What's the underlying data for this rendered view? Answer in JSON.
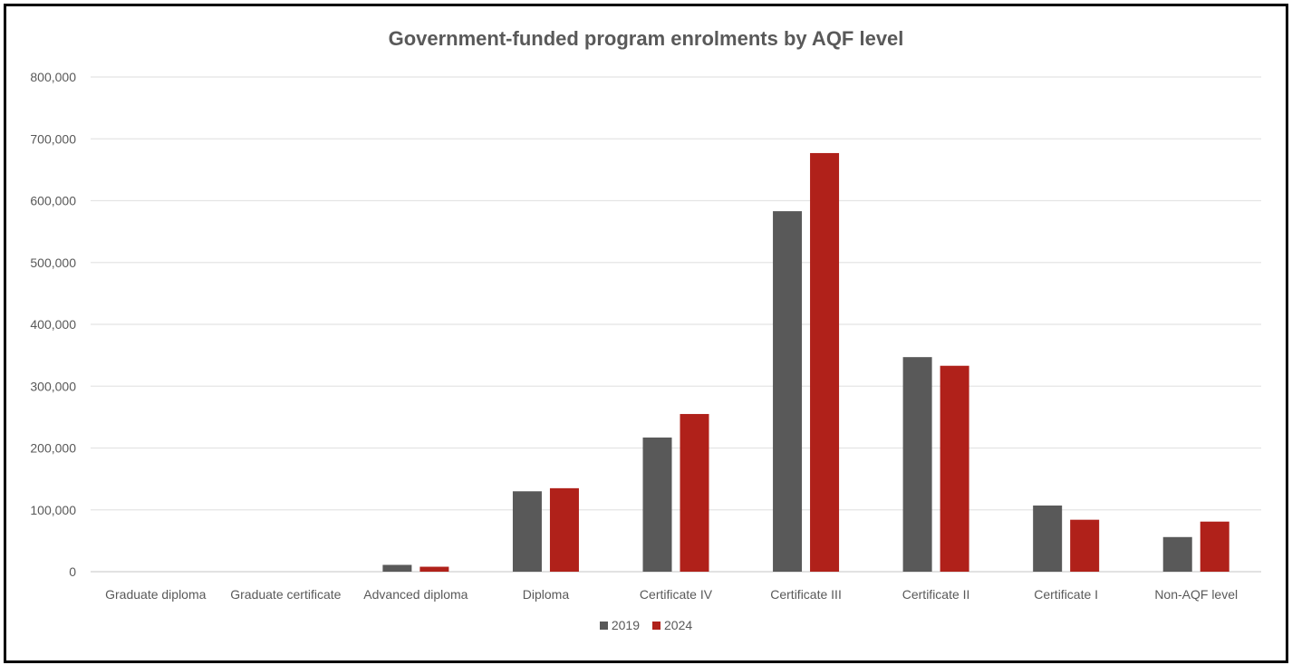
{
  "chart_data": {
    "type": "bar",
    "title": "Government-funded program enrolments by AQF level",
    "xlabel": "",
    "ylabel": "",
    "ylim": [
      0,
      800000
    ],
    "yticks": [
      "0",
      "100,000",
      "200,000",
      "300,000",
      "400,000",
      "500,000",
      "600,000",
      "700,000",
      "800,000"
    ],
    "grid": true,
    "legend_position": "bottom",
    "categories": [
      "Graduate diploma",
      "Graduate certificate",
      "Advanced diploma",
      "Diploma",
      "Certificate IV",
      "Certificate III",
      "Certificate II",
      "Certificate I",
      "Non-AQF level"
    ],
    "series": [
      {
        "name": "2019",
        "color": "#595959",
        "values": [
          0,
          0,
          11000,
          130000,
          217000,
          583000,
          347000,
          107000,
          56000
        ]
      },
      {
        "name": "2024",
        "color": "#B0211A",
        "values": [
          0,
          0,
          8000,
          135000,
          255000,
          677000,
          333000,
          84000,
          81000
        ]
      }
    ]
  }
}
